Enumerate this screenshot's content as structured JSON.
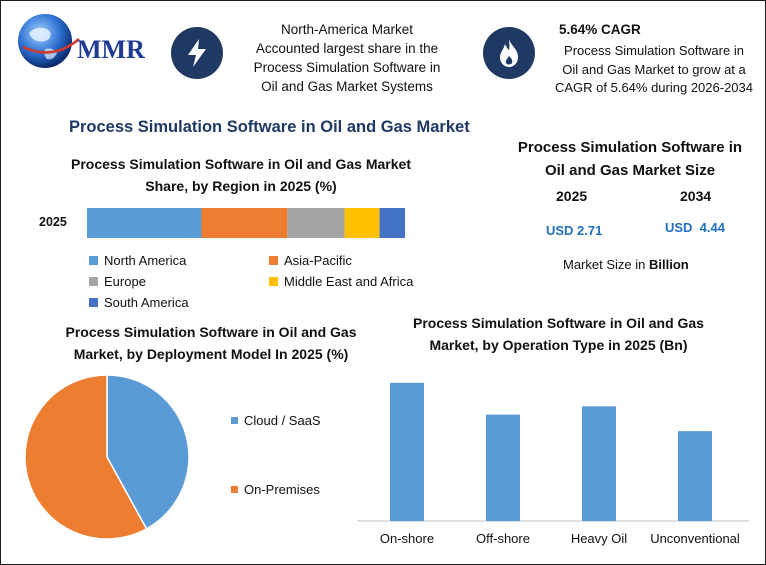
{
  "logo": {
    "text": "MMR"
  },
  "info1": {
    "icon": "lightning-icon",
    "line1": "North-America Market",
    "line2": "Accounted largest share in the",
    "line3": "Process Simulation Software in",
    "line4": "Oil and Gas Market Systems"
  },
  "info2": {
    "icon": "flame-icon",
    "title": "5.64% CAGR",
    "line1": "Process Simulation Software in",
    "line2": "Oil and Gas Market to grow at a",
    "line3": "CAGR of 5.64% during 2026-2034"
  },
  "main_title": "Process Simulation Software in Oil and Gas Market",
  "size_panel": {
    "title_line1": "Process Simulation Software in",
    "title_line2": "Oil and Gas Market Size",
    "year1": "2025",
    "year2": "2034",
    "value1": "USD 2.71",
    "value2": "USD  4.44",
    "note_prefix": "Market Size in ",
    "note_bold": "Billion"
  },
  "colors": {
    "blue": "#5b9bd5",
    "orange": "#ed7d31",
    "gray": "#a5a5a5",
    "yellow": "#ffc000",
    "darkblue": "#4472c4",
    "navy": "#1f3864"
  },
  "chart_data": [
    {
      "type": "bar",
      "orientation": "horizontal-stacked",
      "title": "Process Simulation Software in Oil and Gas Market Share, by Region in 2025 (%)",
      "categories": [
        "2025"
      ],
      "series": [
        {
          "name": "North America",
          "values": [
            36
          ],
          "color": "#5b9bd5"
        },
        {
          "name": "Asia-Pacific",
          "values": [
            27
          ],
          "color": "#ed7d31"
        },
        {
          "name": "Europe",
          "values": [
            18
          ],
          "color": "#a5a5a5"
        },
        {
          "name": "Middle East and Africa",
          "values": [
            11
          ],
          "color": "#ffc000"
        },
        {
          "name": "South America",
          "values": [
            8
          ],
          "color": "#4472c4"
        }
      ],
      "xlim": [
        0,
        100
      ],
      "legend": "bottom"
    },
    {
      "type": "pie",
      "title": "Process Simulation Software in Oil and Gas Market, by Deployment Model In 2025 (%)",
      "labels": [
        "Cloud / SaaS",
        "On-Premises"
      ],
      "values": [
        42,
        58
      ],
      "colors": [
        "#5b9bd5",
        "#ed7d31"
      ],
      "legend": "right"
    },
    {
      "type": "bar",
      "title": "Process Simulation Software in Oil and Gas Market, by Operation Type in 2025 (Bn)",
      "categories": [
        "On-shore",
        "Off-shore",
        "Heavy Oil",
        "Unconventional"
      ],
      "values": [
        1.0,
        0.77,
        0.83,
        0.65
      ],
      "ylim": [
        0,
        1.1
      ],
      "grid": false,
      "color": "#5b9bd5"
    }
  ]
}
